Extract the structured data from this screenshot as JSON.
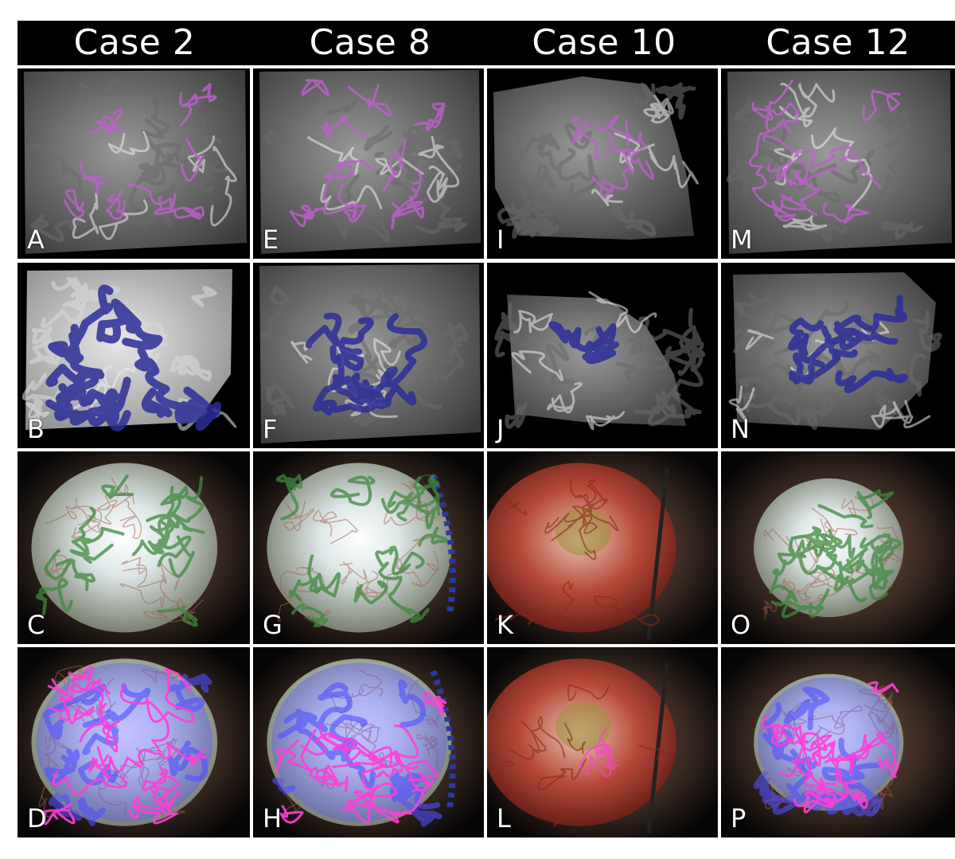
{
  "columns": [
    {
      "title": "Case 2"
    },
    {
      "title": "Case 8"
    },
    {
      "title": "Case 10"
    },
    {
      "title": "Case 12"
    }
  ],
  "panels": [
    [
      "A",
      "E",
      "I",
      "M"
    ],
    [
      "B",
      "F",
      "J",
      "N"
    ],
    [
      "C",
      "G",
      "K",
      "O"
    ],
    [
      "D",
      "H",
      "L",
      "P"
    ]
  ],
  "colors": {
    "vessel_magenta": "#c060d0",
    "vessel_blue": "#2c2e98",
    "vessel_green": "#3f8a3f",
    "overlay_pink": "#ff3fd8",
    "overlay_blue": "#5050ff"
  }
}
